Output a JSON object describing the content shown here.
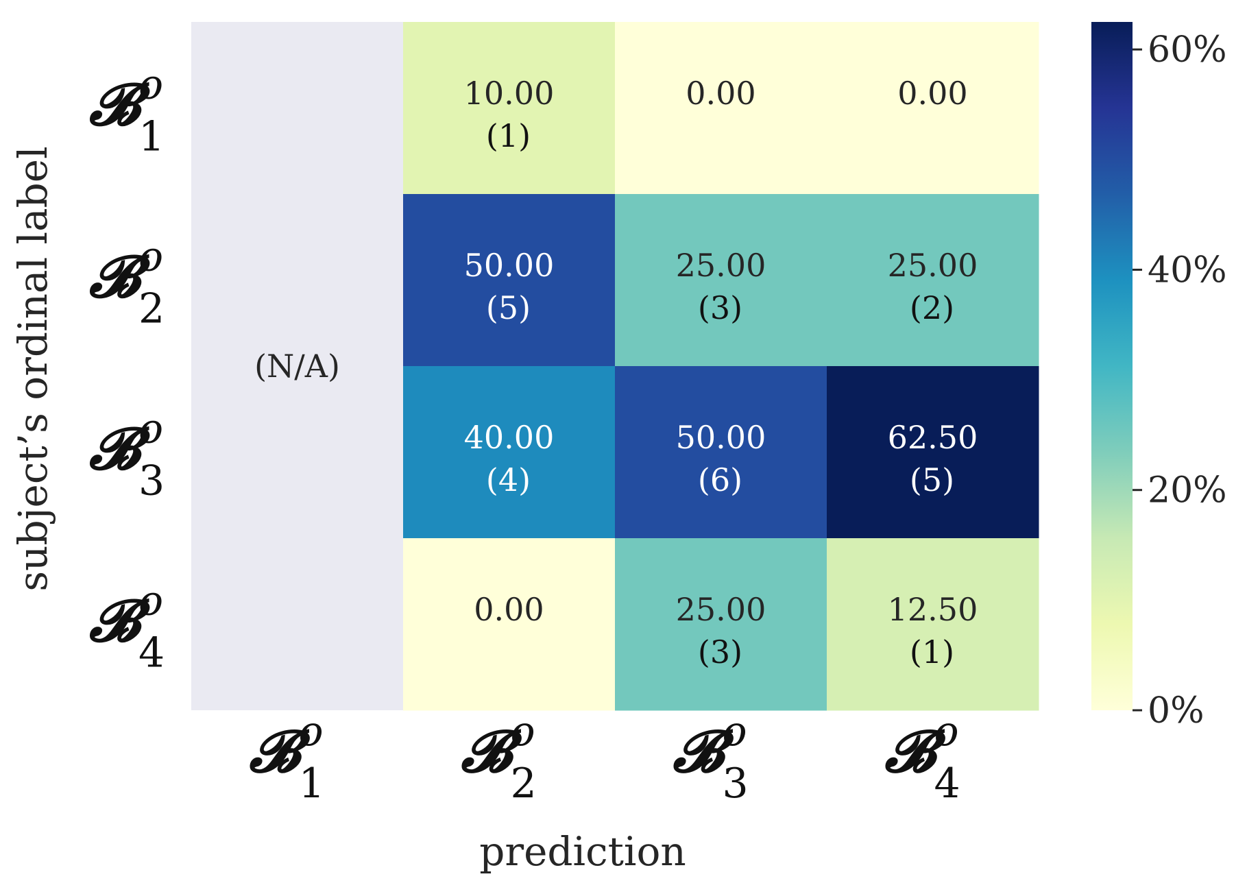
{
  "chart_data": {
    "type": "heatmap",
    "xlabel": "prediction",
    "ylabel": "subject’s ordinal label",
    "x_categories": [
      {
        "base": "𝓑",
        "sup": "o",
        "sub": "1"
      },
      {
        "base": "𝓑",
        "sup": "o",
        "sub": "2"
      },
      {
        "base": "𝓑",
        "sup": "o",
        "sub": "3"
      },
      {
        "base": "𝓑",
        "sup": "o",
        "sub": "4"
      }
    ],
    "y_categories": [
      {
        "base": "𝓑",
        "sup": "o",
        "sub": "1"
      },
      {
        "base": "𝓑",
        "sup": "o",
        "sub": "2"
      },
      {
        "base": "𝓑",
        "sup": "o",
        "sub": "3"
      },
      {
        "base": "𝓑",
        "sup": "o",
        "sub": "4"
      }
    ],
    "values": [
      [
        null,
        10.0,
        0.0,
        0.0
      ],
      [
        null,
        50.0,
        25.0,
        25.0
      ],
      [
        null,
        40.0,
        50.0,
        62.5
      ],
      [
        null,
        0.0,
        25.0,
        12.5
      ]
    ],
    "value_labels": [
      [
        null,
        "10.00",
        "0.00",
        "0.00"
      ],
      [
        null,
        "50.00",
        "25.00",
        "25.00"
      ],
      [
        null,
        "40.00",
        "50.00",
        "62.50"
      ],
      [
        null,
        "0.00",
        "25.00",
        "12.50"
      ]
    ],
    "counts": [
      [
        null,
        "(1)",
        "",
        ""
      ],
      [
        null,
        "(5)",
        "(3)",
        "(2)"
      ],
      [
        null,
        "(4)",
        "(6)",
        "(5)"
      ],
      [
        null,
        "",
        "(3)",
        "(1)"
      ]
    ],
    "na_label": "(N/A)",
    "na_color": "#eaeaf2",
    "colormap": "YlGnBu",
    "colorbar": {
      "min": 0,
      "max": 62.5,
      "ticks": [
        0,
        20,
        40,
        60
      ],
      "tick_labels": [
        "0%",
        "20%",
        "40%",
        "60%"
      ]
    }
  }
}
